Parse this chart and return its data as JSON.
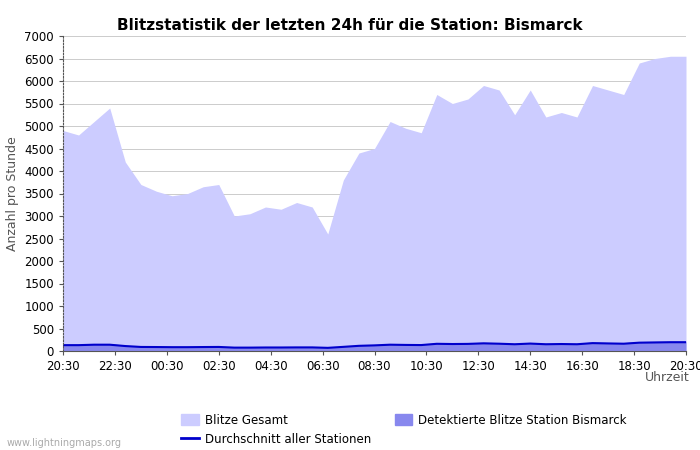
{
  "title": "Blitzstatistik der letzten 24h für die Station: Bismarck",
  "xlabel": "Uhrzeit",
  "ylabel": "Anzahl pro Stunde",
  "watermark": "www.lightningmaps.org",
  "x_ticks": [
    "20:30",
    "22:30",
    "00:30",
    "02:30",
    "04:30",
    "06:30",
    "08:30",
    "10:30",
    "12:30",
    "14:30",
    "16:30",
    "18:30",
    "20:30"
  ],
  "ylim": [
    0,
    7000
  ],
  "yticks": [
    0,
    500,
    1000,
    1500,
    2000,
    2500,
    3000,
    3500,
    4000,
    4500,
    5000,
    5500,
    6000,
    6500,
    7000
  ],
  "blitze_gesamt": [
    4900,
    4800,
    5100,
    5400,
    4200,
    3700,
    3550,
    3450,
    3500,
    3650,
    3700,
    3000,
    3050,
    3200,
    3150,
    3300,
    3200,
    2600,
    3800,
    4400,
    4500,
    5100,
    4950,
    4850,
    5700,
    5500,
    5600,
    5900,
    5800,
    5250,
    5800,
    5200,
    5300,
    5200,
    5900,
    5800,
    5700,
    6400,
    6500,
    6550,
    6550
  ],
  "detektiert": [
    150,
    150,
    160,
    165,
    130,
    100,
    95,
    90,
    90,
    95,
    95,
    80,
    80,
    85,
    85,
    85,
    85,
    75,
    100,
    130,
    140,
    160,
    155,
    150,
    185,
    175,
    180,
    195,
    185,
    170,
    190,
    170,
    175,
    170,
    200,
    190,
    185,
    210,
    215,
    220,
    220
  ],
  "durchschnitt": [
    130,
    130,
    140,
    140,
    110,
    90,
    88,
    85,
    85,
    88,
    90,
    75,
    75,
    78,
    78,
    80,
    80,
    70,
    92,
    115,
    125,
    140,
    135,
    132,
    160,
    155,
    158,
    170,
    162,
    150,
    165,
    150,
    155,
    150,
    175,
    168,
    162,
    185,
    190,
    195,
    195
  ],
  "color_gesamt": "#ccccff",
  "color_detektiert": "#8888ee",
  "color_durchschnitt": "#0000cc",
  "bg_color": "#ffffff",
  "grid_color": "#cccccc",
  "legend_label_gesamt": "Blitze Gesamt",
  "legend_label_detektiert": "Detektierte Blitze Station Bismarck",
  "legend_label_durchschnitt": "Durchschnitt aller Stationen",
  "title_fontsize": 11,
  "axis_fontsize": 9,
  "tick_fontsize": 8.5
}
